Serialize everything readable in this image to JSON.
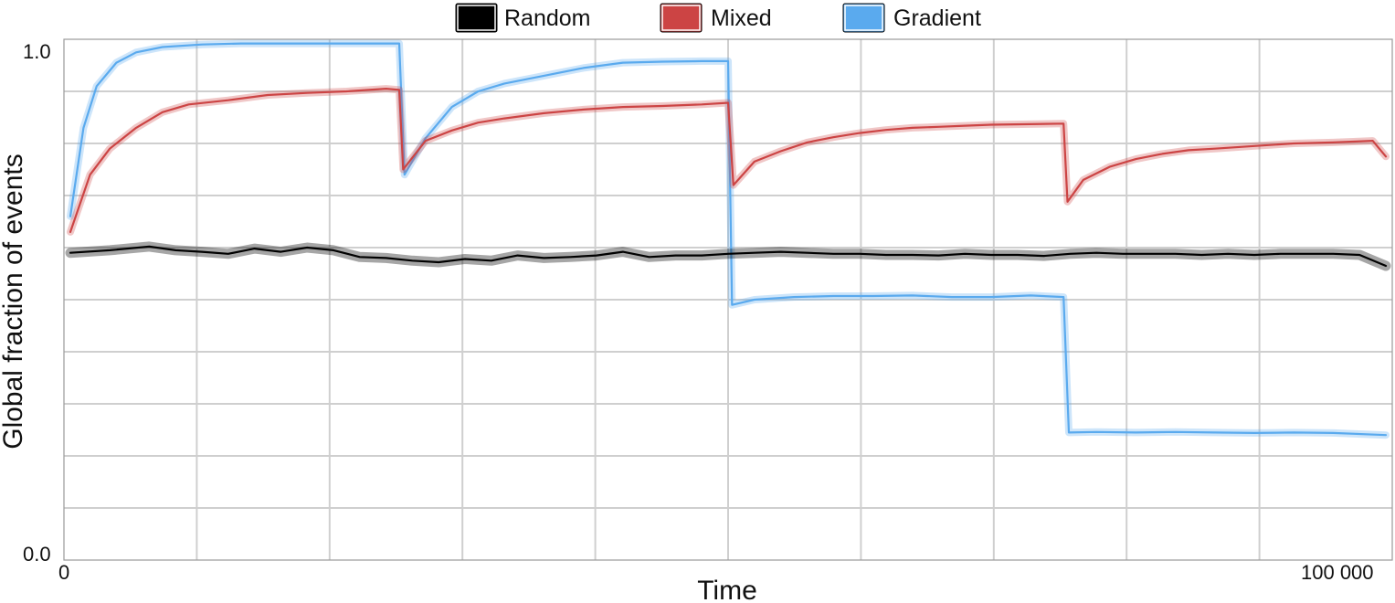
{
  "chart_data": {
    "type": "line",
    "xlabel": "Time",
    "ylabel": "Global fraction of events",
    "x_tick_labels": [
      "0",
      "100 000"
    ],
    "y_tick_labels": [
      "1.0",
      "0.0"
    ],
    "xlim": [
      0,
      100000
    ],
    "ylim": [
      0,
      1
    ],
    "grid": true,
    "legend_position": "top-center",
    "series": [
      {
        "name": "Random",
        "color": "#000000",
        "points": [
          [
            0,
            0.59
          ],
          [
            3000,
            0.595
          ],
          [
            6000,
            0.602
          ],
          [
            8000,
            0.595
          ],
          [
            10000,
            0.592
          ],
          [
            12000,
            0.588
          ],
          [
            14000,
            0.598
          ],
          [
            16000,
            0.592
          ],
          [
            18000,
            0.6
          ],
          [
            20000,
            0.595
          ],
          [
            22000,
            0.582
          ],
          [
            24000,
            0.58
          ],
          [
            26000,
            0.575
          ],
          [
            28000,
            0.572
          ],
          [
            30000,
            0.578
          ],
          [
            32000,
            0.575
          ],
          [
            34000,
            0.585
          ],
          [
            36000,
            0.58
          ],
          [
            38000,
            0.582
          ],
          [
            40000,
            0.585
          ],
          [
            42000,
            0.592
          ],
          [
            44000,
            0.582
          ],
          [
            46000,
            0.585
          ],
          [
            48000,
            0.585
          ],
          [
            50000,
            0.588
          ],
          [
            52000,
            0.59
          ],
          [
            54000,
            0.592
          ],
          [
            56000,
            0.59
          ],
          [
            58000,
            0.588
          ],
          [
            60000,
            0.588
          ],
          [
            62000,
            0.586
          ],
          [
            64000,
            0.586
          ],
          [
            66000,
            0.585
          ],
          [
            68000,
            0.588
          ],
          [
            70000,
            0.586
          ],
          [
            72000,
            0.586
          ],
          [
            74000,
            0.584
          ],
          [
            76000,
            0.588
          ],
          [
            78000,
            0.59
          ],
          [
            80000,
            0.588
          ],
          [
            82000,
            0.588
          ],
          [
            84000,
            0.588
          ],
          [
            86000,
            0.586
          ],
          [
            88000,
            0.588
          ],
          [
            90000,
            0.586
          ],
          [
            92000,
            0.588
          ],
          [
            94000,
            0.588
          ],
          [
            96000,
            0.588
          ],
          [
            98000,
            0.586
          ],
          [
            100000,
            0.565
          ]
        ]
      },
      {
        "name": "Mixed",
        "color": "#cc4444",
        "points": [
          [
            0,
            0.63
          ],
          [
            1500,
            0.74
          ],
          [
            3000,
            0.79
          ],
          [
            5000,
            0.83
          ],
          [
            7000,
            0.86
          ],
          [
            9000,
            0.875
          ],
          [
            12000,
            0.883
          ],
          [
            15000,
            0.893
          ],
          [
            18000,
            0.897
          ],
          [
            21000,
            0.9
          ],
          [
            24000,
            0.905
          ],
          [
            25000,
            0.903
          ],
          [
            25300,
            0.75
          ],
          [
            27000,
            0.805
          ],
          [
            29000,
            0.825
          ],
          [
            31000,
            0.84
          ],
          [
            33000,
            0.848
          ],
          [
            36000,
            0.858
          ],
          [
            39000,
            0.865
          ],
          [
            42000,
            0.87
          ],
          [
            45000,
            0.872
          ],
          [
            48000,
            0.875
          ],
          [
            50000,
            0.878
          ],
          [
            50400,
            0.72
          ],
          [
            52000,
            0.765
          ],
          [
            54000,
            0.785
          ],
          [
            56000,
            0.802
          ],
          [
            58000,
            0.812
          ],
          [
            60000,
            0.82
          ],
          [
            62000,
            0.826
          ],
          [
            64000,
            0.83
          ],
          [
            66000,
            0.832
          ],
          [
            68000,
            0.834
          ],
          [
            70000,
            0.836
          ],
          [
            75500,
            0.838
          ],
          [
            75800,
            0.688
          ],
          [
            77000,
            0.73
          ],
          [
            79000,
            0.755
          ],
          [
            81000,
            0.77
          ],
          [
            83000,
            0.78
          ],
          [
            85000,
            0.787
          ],
          [
            87000,
            0.79
          ],
          [
            90000,
            0.795
          ],
          [
            93000,
            0.8
          ],
          [
            96000,
            0.802
          ],
          [
            99000,
            0.805
          ],
          [
            100000,
            0.775
          ]
        ]
      },
      {
        "name": "Gradient",
        "color": "#5aaaee",
        "points": [
          [
            0,
            0.66
          ],
          [
            1000,
            0.83
          ],
          [
            2000,
            0.91
          ],
          [
            3500,
            0.955
          ],
          [
            5000,
            0.975
          ],
          [
            7000,
            0.985
          ],
          [
            10000,
            0.99
          ],
          [
            13000,
            0.992
          ],
          [
            25000,
            0.992
          ],
          [
            25400,
            0.74
          ],
          [
            27000,
            0.81
          ],
          [
            29000,
            0.87
          ],
          [
            31000,
            0.9
          ],
          [
            33000,
            0.915
          ],
          [
            36000,
            0.93
          ],
          [
            39000,
            0.945
          ],
          [
            42000,
            0.955
          ],
          [
            45000,
            0.957
          ],
          [
            48000,
            0.958
          ],
          [
            50000,
            0.958
          ],
          [
            50300,
            0.49
          ],
          [
            52000,
            0.5
          ],
          [
            55000,
            0.505
          ],
          [
            58000,
            0.507
          ],
          [
            61000,
            0.507
          ],
          [
            64000,
            0.508
          ],
          [
            67000,
            0.505
          ],
          [
            70000,
            0.505
          ],
          [
            73000,
            0.508
          ],
          [
            75500,
            0.505
          ],
          [
            75900,
            0.245
          ],
          [
            78000,
            0.246
          ],
          [
            81000,
            0.245
          ],
          [
            84000,
            0.246
          ],
          [
            87000,
            0.245
          ],
          [
            90000,
            0.244
          ],
          [
            93000,
            0.245
          ],
          [
            96000,
            0.244
          ],
          [
            100000,
            0.24
          ]
        ]
      }
    ]
  }
}
